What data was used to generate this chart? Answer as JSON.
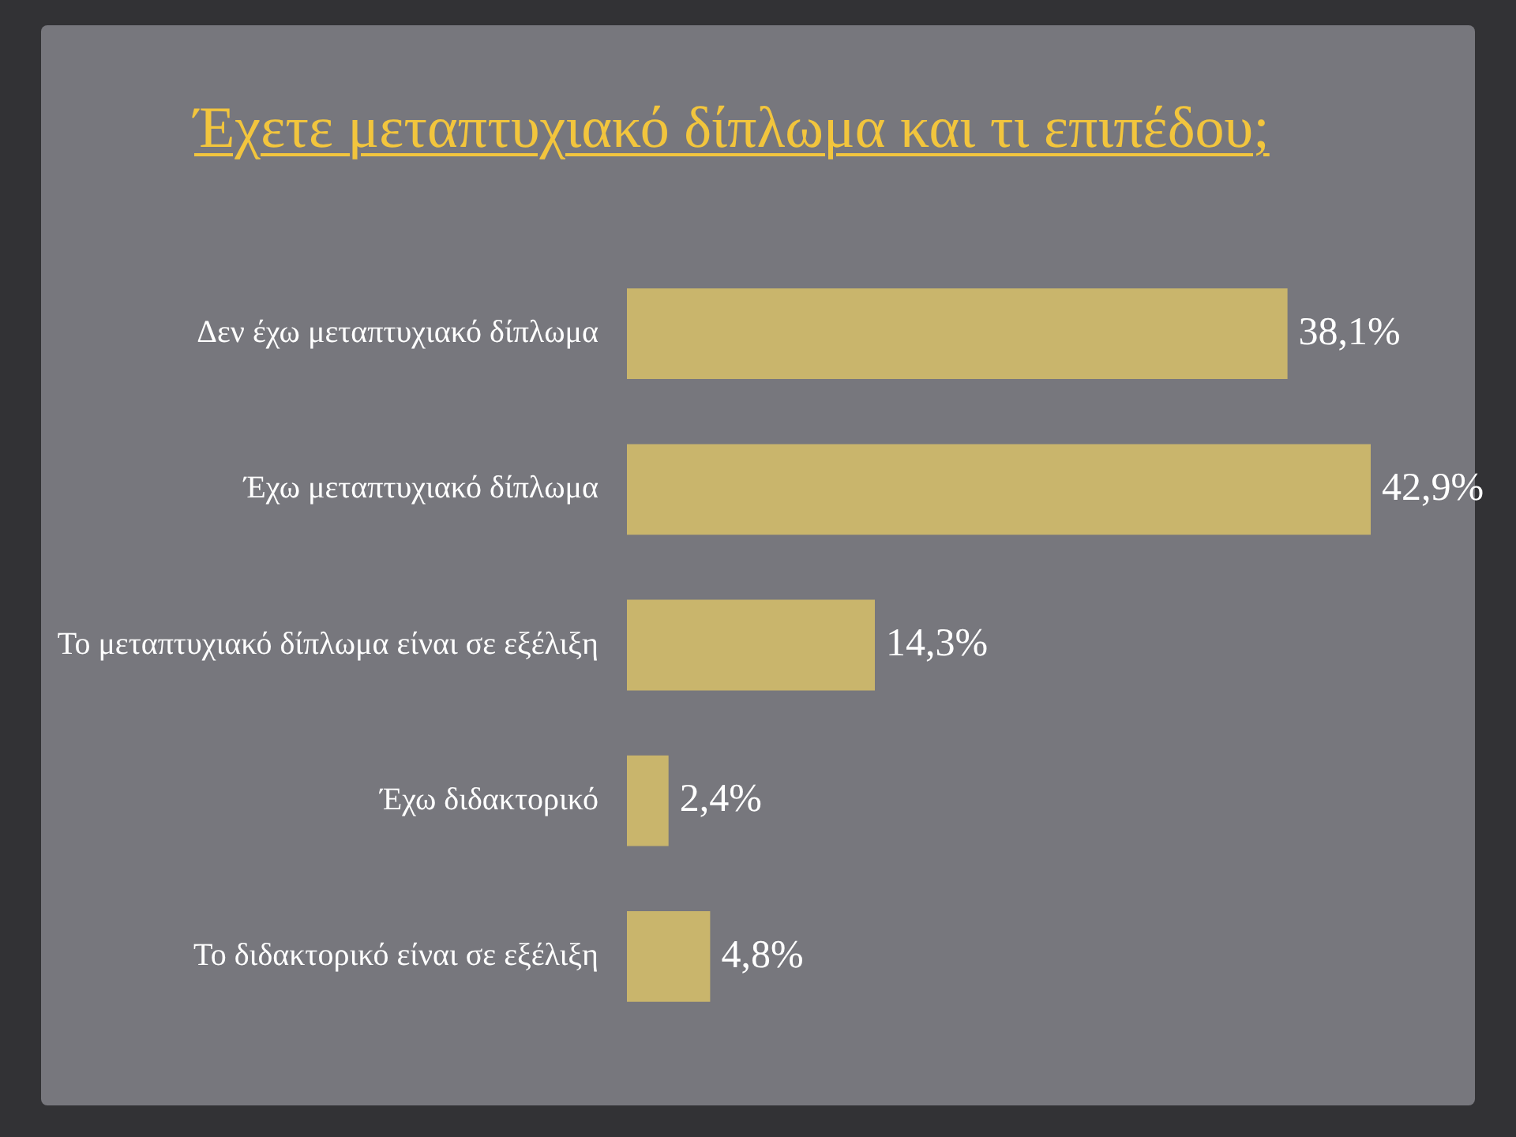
{
  "chart_data": {
    "type": "bar",
    "orientation": "horizontal",
    "title": "Έχετε μεταπτυχιακό δίπλωμα και τι επιπέδου;",
    "categories": [
      "Δεν έχω μεταπτυχιακό δίπλωμα",
      "Έχω μεταπτυχιακό δίπλωμα",
      "Το μεταπτυχιακό δίπλωμα είναι σε εξέλιξη",
      "Έχω διδακτορικό",
      "Το διδακτορικό είναι σε εξέλιξη"
    ],
    "values": [
      38.1,
      42.9,
      14.3,
      2.4,
      4.8
    ],
    "color": "#c9b56c",
    "value_labels": [
      "38,1%",
      "42,9%",
      "14,3%",
      "2,4%",
      "4,8%"
    ]
  }
}
